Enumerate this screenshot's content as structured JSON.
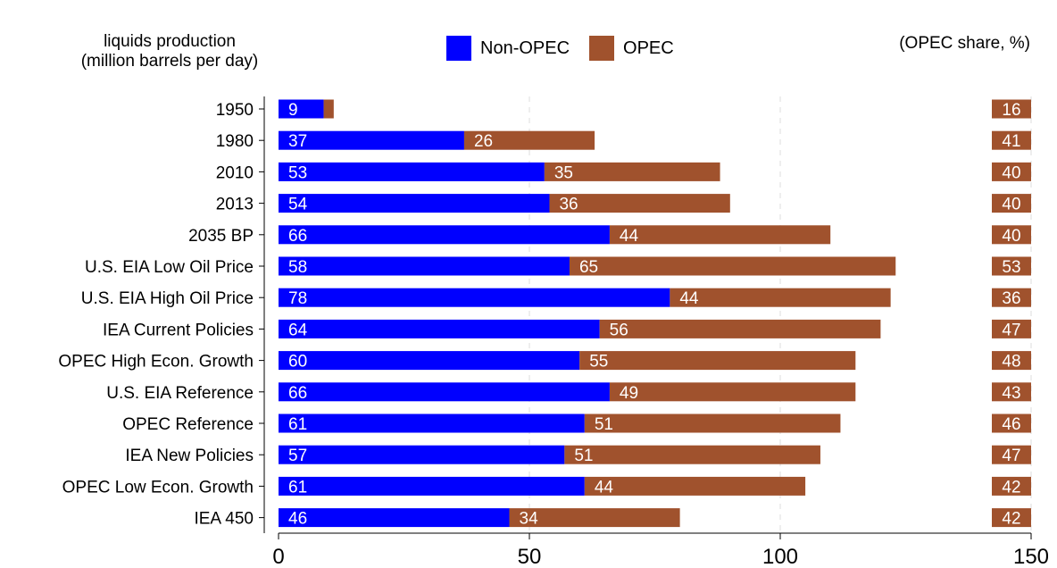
{
  "chart_data": {
    "type": "bar",
    "orientation": "horizontal",
    "stacked": true,
    "ylabel_lines": [
      "liquids production",
      "(million barrels per day)"
    ],
    "share_title": "(OPEC share, %)",
    "categories": [
      "1950",
      "1980",
      "2010",
      "2013",
      "2035 BP",
      "U.S. EIA Low Oil Price",
      "U.S. EIA High Oil Price",
      "IEA Current Policies",
      "OPEC High Econ. Growth",
      "U.S. EIA Reference",
      "OPEC Reference",
      "IEA New Policies",
      "OPEC Low Econ. Growth",
      "IEA 450"
    ],
    "series": [
      {
        "name": "Non-OPEC",
        "color": "#0000ff",
        "values": [
          9,
          37,
          53,
          54,
          66,
          58,
          78,
          64,
          60,
          66,
          61,
          57,
          61,
          46
        ],
        "labels": [
          "9",
          "37",
          "53",
          "54",
          "66",
          "58",
          "78",
          "64",
          "60",
          "66",
          "61",
          "57",
          "61",
          "46"
        ]
      },
      {
        "name": "OPEC",
        "color": "#a0522d",
        "values": [
          2,
          26,
          35,
          36,
          44,
          65,
          44,
          56,
          55,
          49,
          51,
          51,
          44,
          34
        ],
        "labels": [
          "",
          "26",
          "35",
          "36",
          "44",
          "65",
          "44",
          "56",
          "55",
          "49",
          "51",
          "51",
          "44",
          "34"
        ]
      }
    ],
    "opec_share": [
      "16",
      "41",
      "40",
      "40",
      "40",
      "53",
      "36",
      "47",
      "48",
      "43",
      "46",
      "47",
      "42",
      "42"
    ],
    "xlim": [
      0,
      150
    ],
    "xticks": [
      "0",
      "50",
      "100",
      "150"
    ],
    "grid": "vertical dashed",
    "legend_position": "top-center"
  }
}
